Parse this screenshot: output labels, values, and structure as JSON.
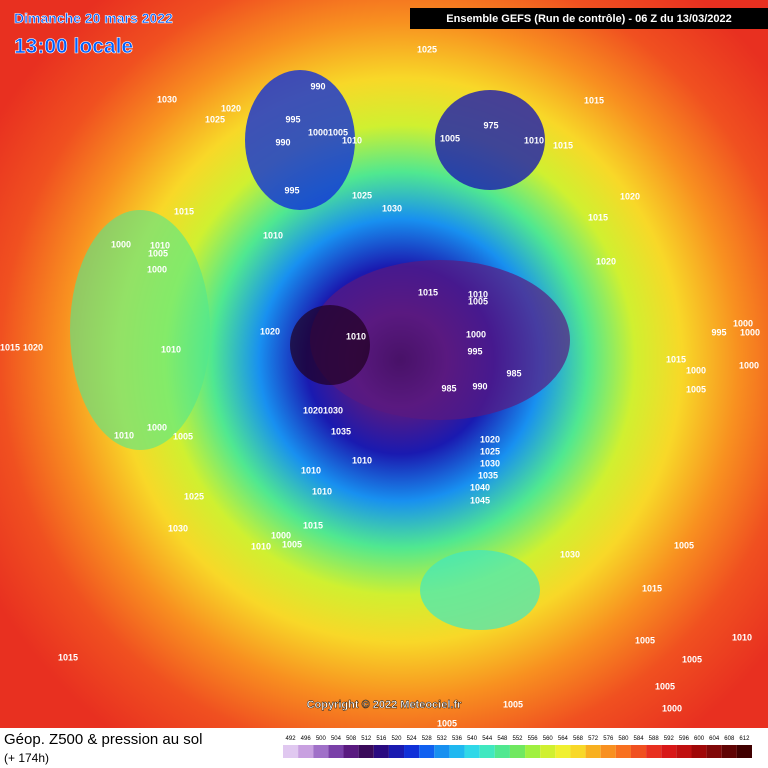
{
  "header": {
    "date": "Dimanche 20 mars 2022",
    "local_time": "13:00 locale",
    "run": "Ensemble GEFS  (Run de contrôle)  -  06 Z du 13/03/2022"
  },
  "footer": {
    "title": "Géop. Z500 & pression au sol",
    "lead": "(+ 174h)",
    "copyright": "Copyright © 2022 Meteociel.fr"
  },
  "scale": {
    "ticks": [
      492,
      496,
      500,
      504,
      508,
      512,
      516,
      520,
      524,
      528,
      532,
      536,
      540,
      544,
      548,
      552,
      556,
      560,
      564,
      568,
      572,
      576,
      580,
      584,
      588,
      592,
      596,
      600,
      604,
      608,
      612
    ],
    "colors": [
      "#e0c8f0",
      "#c8a0e0",
      "#a070c8",
      "#7a40a8",
      "#5a1a80",
      "#3a0a5a",
      "#2a0a80",
      "#1a1ab0",
      "#1030d8",
      "#1060f0",
      "#1890f0",
      "#20b8f0",
      "#30d8e8",
      "#40e8c0",
      "#50e890",
      "#70e860",
      "#a0f040",
      "#d0f030",
      "#f0f030",
      "#f8d828",
      "#f8b020",
      "#f89020",
      "#f87020",
      "#f05020",
      "#e83020",
      "#d81818",
      "#c01010",
      "#a00808",
      "#800808",
      "#600404",
      "#400000"
    ]
  },
  "isobar_labels": [
    1025,
    990,
    1030,
    1020,
    1025,
    995,
    1000,
    1005,
    1010,
    990,
    995,
    1025,
    1030,
    1015,
    1010,
    1000,
    1010,
    1005,
    1000,
    1015,
    1010,
    1015,
    975,
    1005,
    1020,
    1015,
    1020,
    1015,
    1010,
    1005,
    1020,
    1010,
    1000,
    995,
    985,
    990,
    985,
    1015,
    1020,
    1010,
    1000,
    1005,
    1010,
    1030,
    1020,
    1035,
    1010,
    1010,
    1010,
    1020,
    1025,
    1030,
    1035,
    1040,
    1045,
    1025,
    1030,
    1015,
    1000,
    1005,
    1010,
    1030,
    1015,
    1005,
    1015,
    1005,
    1005,
    1005,
    1000,
    1005,
    1005,
    1010,
    1015,
    1000,
    1005,
    1000,
    1000,
    995,
    1000
  ]
}
